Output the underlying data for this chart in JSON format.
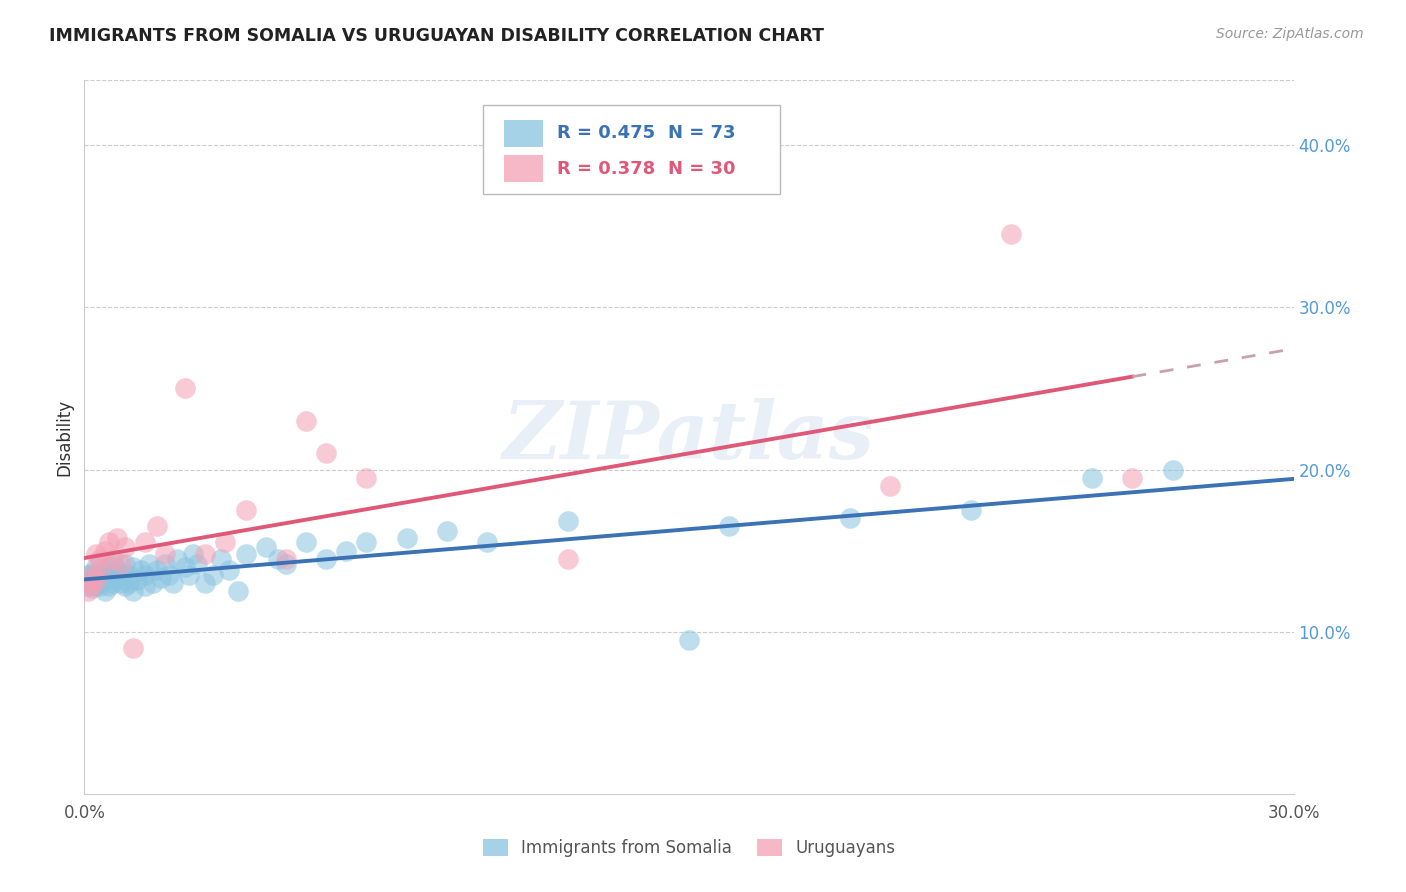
{
  "title": "IMMIGRANTS FROM SOMALIA VS URUGUAYAN DISABILITY CORRELATION CHART",
  "source": "Source: ZipAtlas.com",
  "ylabel": "Disability",
  "xlim": [
    0.0,
    0.3
  ],
  "ylim": [
    0.0,
    0.44
  ],
  "y_ticks_right": [
    0.1,
    0.2,
    0.3,
    0.4
  ],
  "y_tick_labels_right": [
    "10.0%",
    "20.0%",
    "30.0%",
    "40.0%"
  ],
  "legend_r1": "R = 0.475",
  "legend_n1": "N = 73",
  "legend_r2": "R = 0.378",
  "legend_n2": "N = 30",
  "color_blue": "#89c4e1",
  "color_pink": "#f4a0b5",
  "color_blue_line": "#3a72b5",
  "color_pink_line": "#e05878",
  "color_pink_dashed": "#c8a0b0",
  "watermark": "ZIPatlas",
  "somalia_x": [
    0.001,
    0.001,
    0.001,
    0.002,
    0.002,
    0.002,
    0.002,
    0.003,
    0.003,
    0.003,
    0.003,
    0.004,
    0.004,
    0.004,
    0.004,
    0.005,
    0.005,
    0.005,
    0.006,
    0.006,
    0.006,
    0.007,
    0.007,
    0.007,
    0.008,
    0.008,
    0.009,
    0.009,
    0.01,
    0.01,
    0.011,
    0.011,
    0.012,
    0.012,
    0.013,
    0.014,
    0.015,
    0.015,
    0.016,
    0.017,
    0.018,
    0.019,
    0.02,
    0.021,
    0.022,
    0.023,
    0.025,
    0.026,
    0.027,
    0.028,
    0.03,
    0.032,
    0.034,
    0.036,
    0.038,
    0.04,
    0.045,
    0.048,
    0.05,
    0.055,
    0.06,
    0.065,
    0.07,
    0.08,
    0.09,
    0.1,
    0.12,
    0.15,
    0.16,
    0.19,
    0.22,
    0.25,
    0.27
  ],
  "somalia_y": [
    0.13,
    0.135,
    0.128,
    0.133,
    0.13,
    0.127,
    0.136,
    0.132,
    0.128,
    0.135,
    0.14,
    0.13,
    0.135,
    0.128,
    0.133,
    0.131,
    0.138,
    0.125,
    0.133,
    0.128,
    0.14,
    0.135,
    0.13,
    0.142,
    0.133,
    0.138,
    0.13,
    0.135,
    0.128,
    0.142,
    0.135,
    0.13,
    0.125,
    0.14,
    0.132,
    0.138,
    0.135,
    0.128,
    0.142,
    0.13,
    0.138,
    0.133,
    0.142,
    0.135,
    0.13,
    0.145,
    0.14,
    0.135,
    0.148,
    0.142,
    0.13,
    0.135,
    0.145,
    0.138,
    0.125,
    0.148,
    0.152,
    0.145,
    0.142,
    0.155,
    0.145,
    0.15,
    0.155,
    0.158,
    0.162,
    0.155,
    0.168,
    0.095,
    0.165,
    0.17,
    0.175,
    0.195,
    0.2
  ],
  "uruguay_x": [
    0.001,
    0.001,
    0.002,
    0.002,
    0.003,
    0.003,
    0.004,
    0.004,
    0.005,
    0.006,
    0.007,
    0.008,
    0.009,
    0.01,
    0.012,
    0.015,
    0.018,
    0.02,
    0.025,
    0.03,
    0.035,
    0.04,
    0.05,
    0.055,
    0.06,
    0.07,
    0.12,
    0.2,
    0.23,
    0.26
  ],
  "uruguay_y": [
    0.13,
    0.125,
    0.128,
    0.135,
    0.132,
    0.148,
    0.145,
    0.138,
    0.15,
    0.155,
    0.145,
    0.158,
    0.142,
    0.152,
    0.09,
    0.155,
    0.165,
    0.148,
    0.25,
    0.148,
    0.155,
    0.175,
    0.145,
    0.23,
    0.21,
    0.195,
    0.145,
    0.19,
    0.345,
    0.195
  ]
}
